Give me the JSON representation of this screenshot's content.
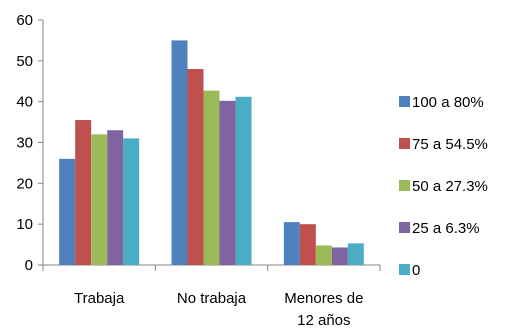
{
  "chart_data": {
    "type": "bar",
    "title": "",
    "xlabel": "",
    "ylabel": "",
    "ylim": [
      0,
      60
    ],
    "yticks": [
      "0",
      "10",
      "20",
      "30",
      "40",
      "50",
      "60"
    ],
    "grid": false,
    "legend_position": "right",
    "categories": [
      {
        "lines": [
          "Trabaja"
        ]
      },
      {
        "lines": [
          "No trabaja"
        ]
      },
      {
        "lines": [
          "Menores de",
          "12 años"
        ]
      }
    ],
    "series": [
      {
        "name": "100 a 80%",
        "color": "#4F81BD",
        "values": [
          26,
          55,
          10.5
        ]
      },
      {
        "name": "75 a 54.5%",
        "color": "#C0504D",
        "values": [
          35.5,
          48,
          10
        ]
      },
      {
        "name": "50 a 27.3%",
        "color": "#9BBB59",
        "values": [
          32,
          42.7,
          4.8
        ]
      },
      {
        "name": "25 a 6.3%",
        "color": "#8064A2",
        "values": [
          33,
          40.2,
          4.3
        ]
      },
      {
        "name": "0",
        "color": "#4BACC6",
        "values": [
          31,
          41.2,
          5.3
        ]
      }
    ]
  }
}
